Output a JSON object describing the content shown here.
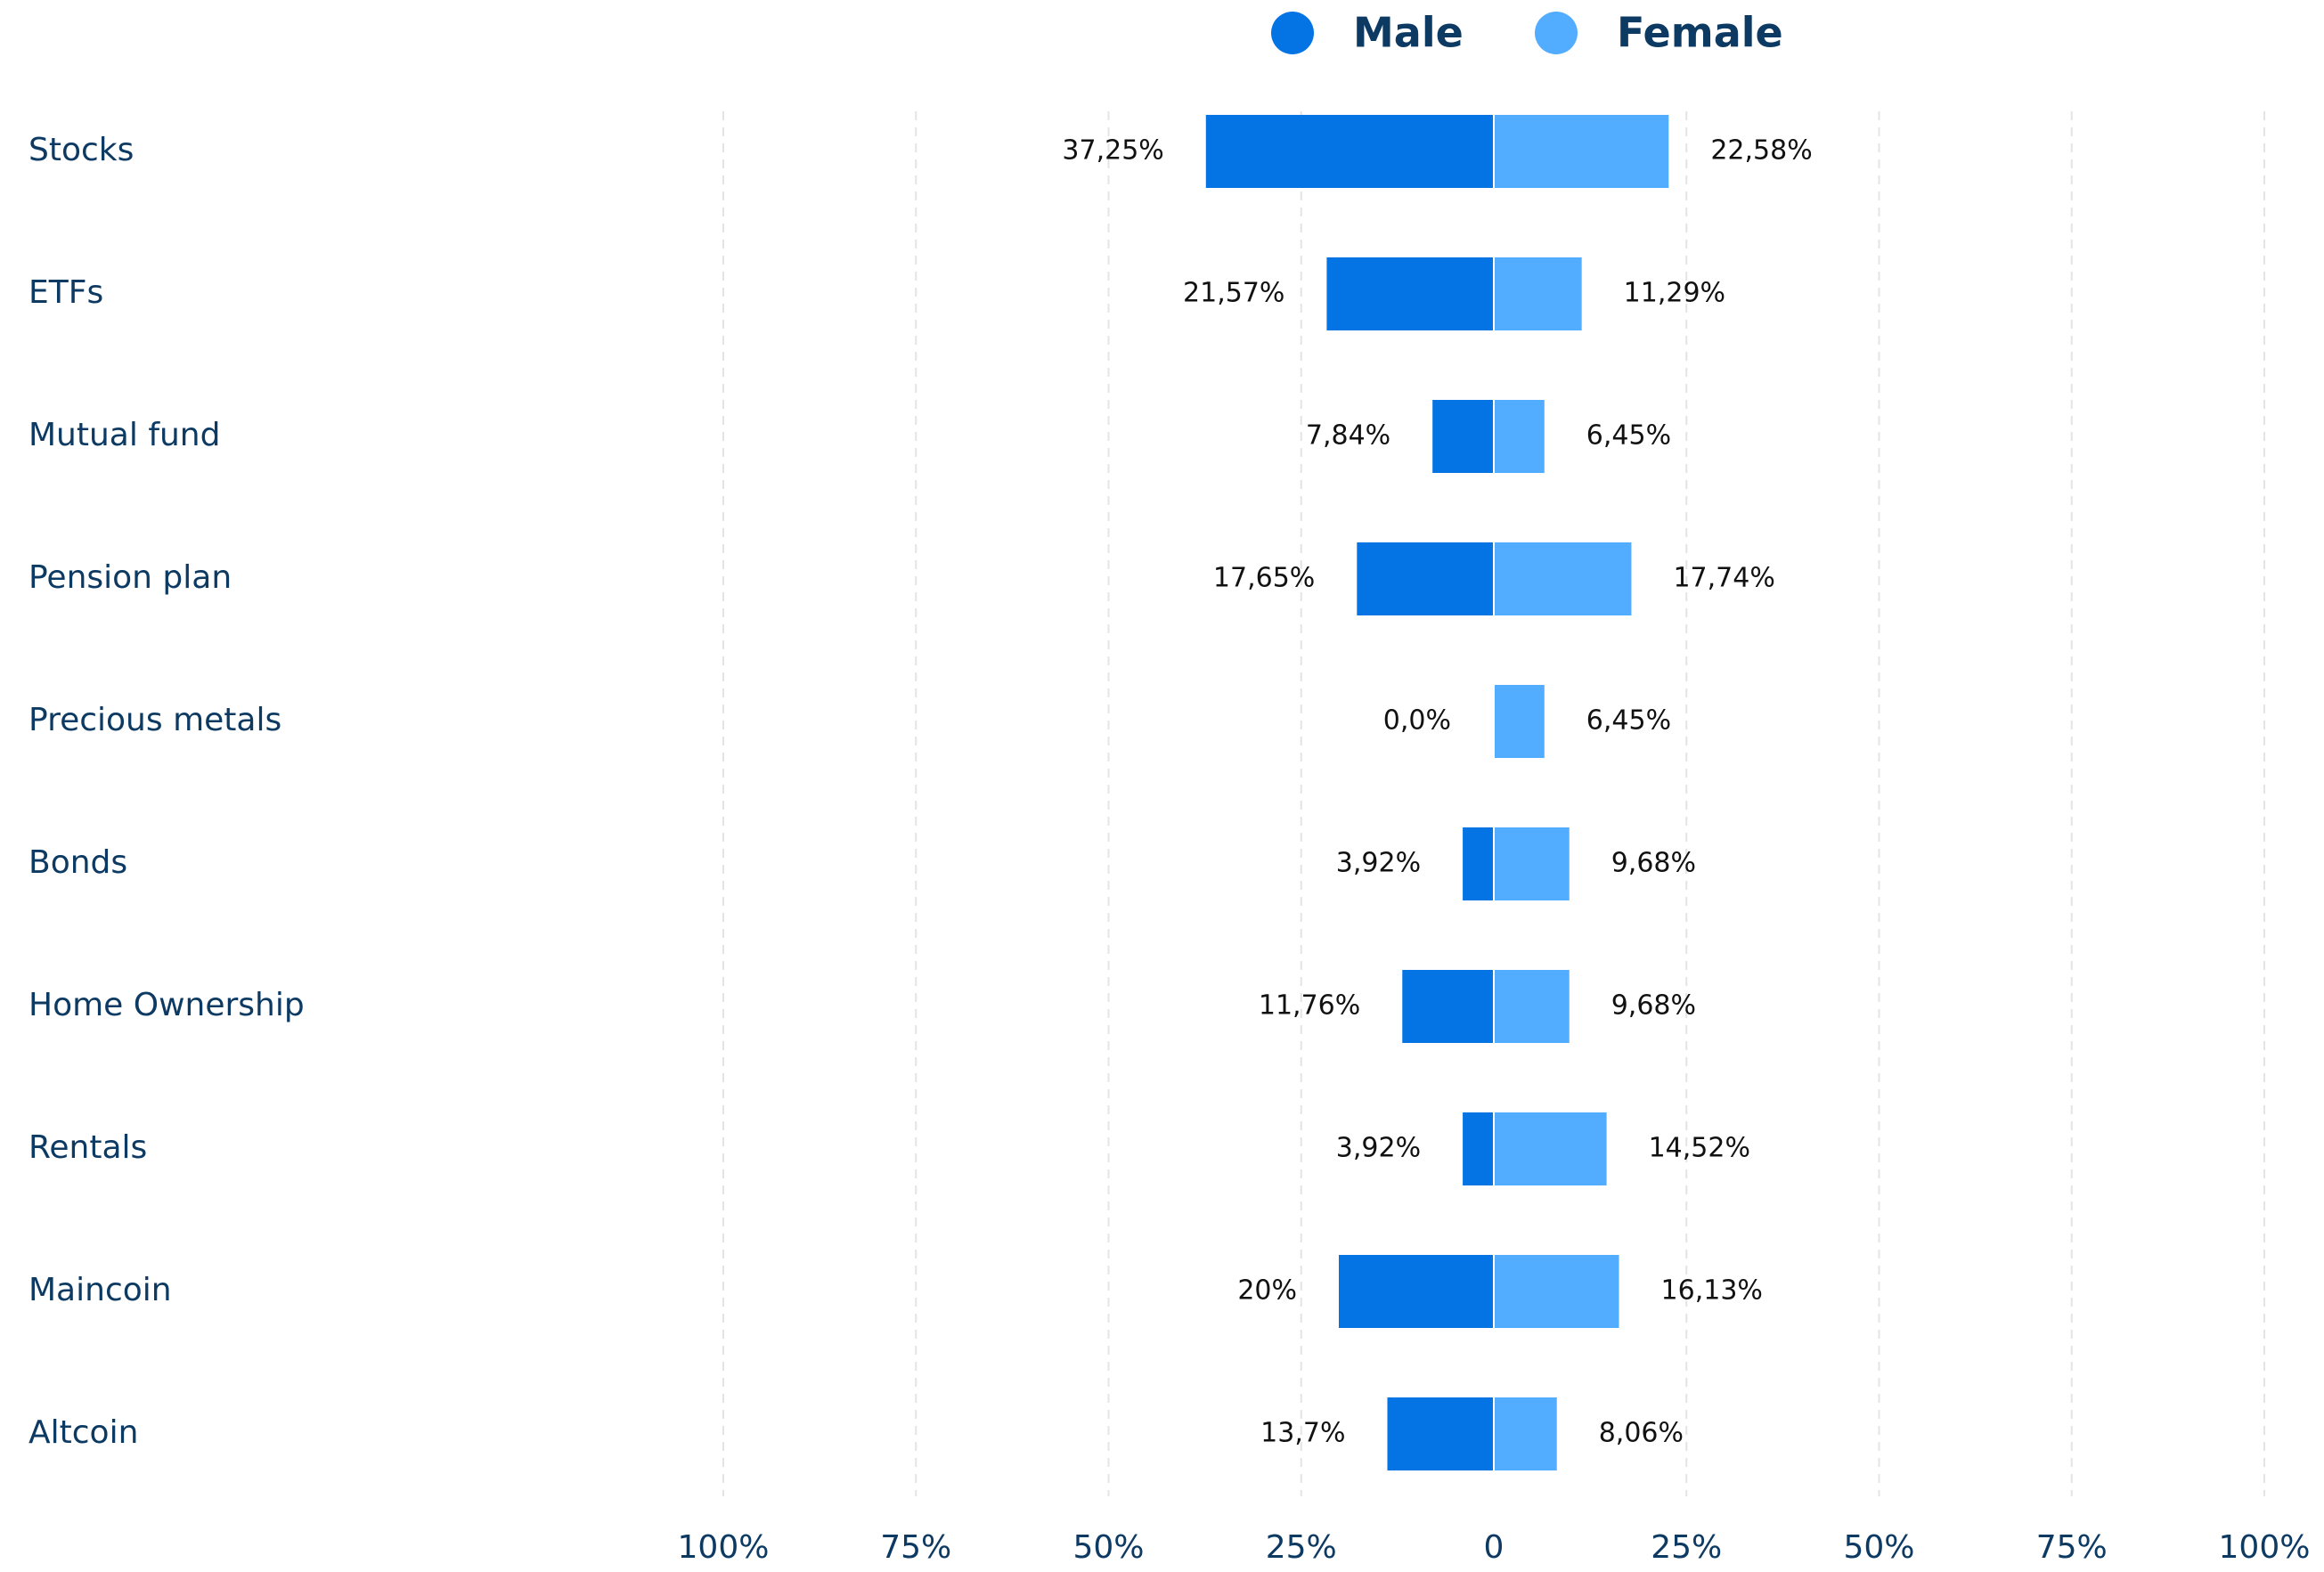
{
  "chart_data": {
    "type": "butterfly",
    "categories": [
      "Stocks",
      "ETFs",
      "Mutual fund",
      "Pension plan",
      "Precious metals",
      "Bonds",
      "Home Ownership",
      "Rentals",
      "Maincoin",
      "Altcoin"
    ],
    "series": [
      {
        "name": "Male",
        "color": "#0474e4",
        "side": "left",
        "values": [
          37.25,
          21.57,
          7.84,
          17.65,
          0.0,
          3.92,
          11.76,
          3.92,
          20,
          13.7
        ],
        "value_labels": [
          "37,25%",
          "21,57%",
          "7,84%",
          "17,65%",
          "0,0%",
          "3,92%",
          "11,76%",
          "3,92%",
          "20%",
          "13,7%"
        ]
      },
      {
        "name": "Female",
        "color": "#52acff",
        "side": "right",
        "values": [
          22.58,
          11.29,
          6.45,
          17.74,
          6.45,
          9.68,
          9.68,
          14.52,
          16.13,
          8.06
        ],
        "value_labels": [
          "22,58%",
          "11,29%",
          "6,45%",
          "17,74%",
          "6,45%",
          "9,68%",
          "9,68%",
          "14,52%",
          "16,13%",
          "8,06%"
        ]
      }
    ],
    "xlim": [
      0,
      100
    ],
    "xticks": [
      0,
      {
        "value": 25,
        "label": "25%"
      },
      {
        "value": 50,
        "label": "50%"
      },
      {
        "value": 75,
        "label": "75%"
      },
      {
        "value": 100,
        "label": "100%"
      }
    ],
    "grid": true,
    "legend": "top"
  }
}
